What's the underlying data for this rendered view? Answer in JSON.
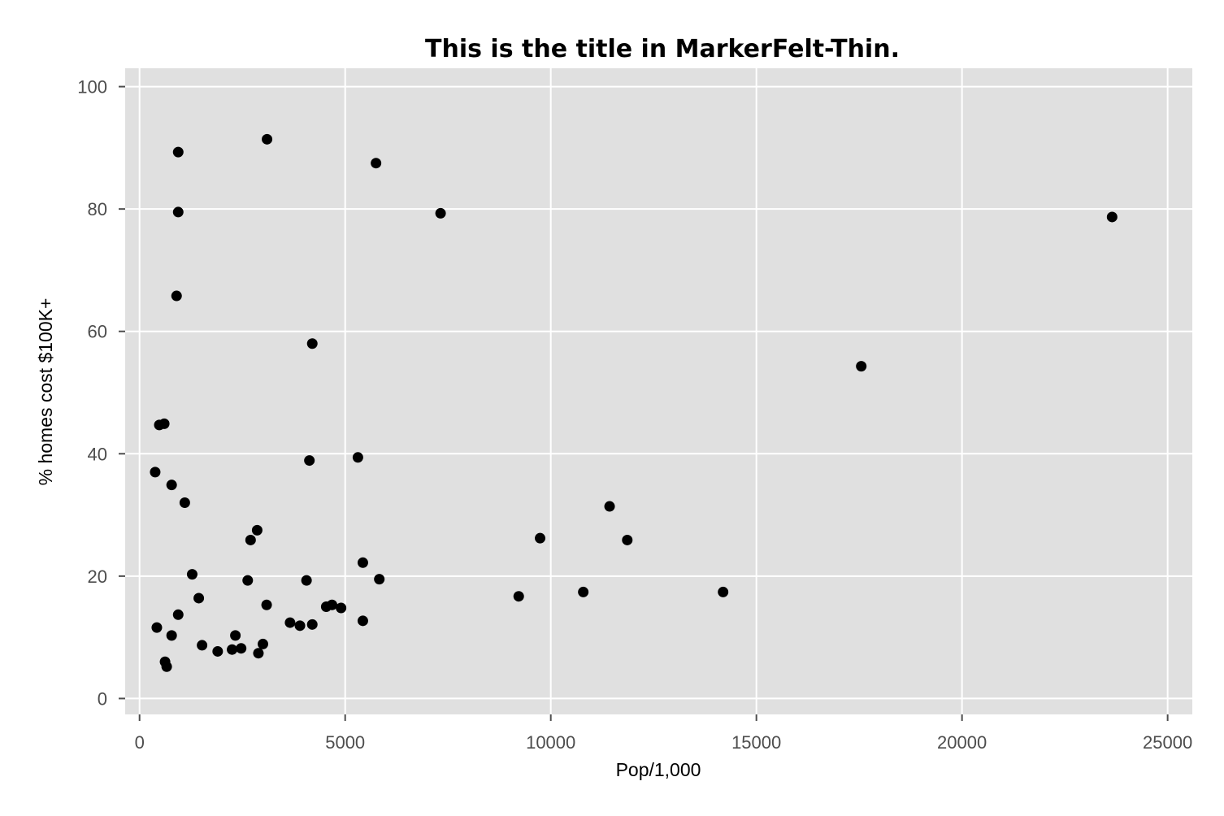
{
  "chart_data": {
    "type": "scatter",
    "title": "This is the title in MarkerFelt-Thin.",
    "xlabel": "Pop/1,000",
    "ylabel": "% homes cost $100K+",
    "xlim": [
      -350,
      25600
    ],
    "ylim": [
      -2.6,
      103
    ],
    "xticks": [
      0,
      5000,
      10000,
      15000,
      20000,
      25000
    ],
    "yticks": [
      0,
      20,
      40,
      60,
      80,
      100
    ],
    "xtick_labels": [
      "0",
      "5000",
      "10000",
      "15000",
      "20000",
      "25000"
    ],
    "ytick_labels": [
      "0",
      "20",
      "40",
      "60",
      "80",
      "100"
    ],
    "grid": true,
    "colors": {
      "panel": "#e0e0e0",
      "grid_major": "#ffffff",
      "point": "#000000",
      "tick": "#4d4d4d"
    },
    "points": [
      {
        "x": 940,
        "y": 89.3
      },
      {
        "x": 3100,
        "y": 91.4
      },
      {
        "x": 5750,
        "y": 87.5
      },
      {
        "x": 940,
        "y": 79.5
      },
      {
        "x": 7320,
        "y": 79.3
      },
      {
        "x": 23650,
        "y": 78.7
      },
      {
        "x": 900,
        "y": 65.8
      },
      {
        "x": 4200,
        "y": 58.0
      },
      {
        "x": 17550,
        "y": 54.3
      },
      {
        "x": 480,
        "y": 44.7
      },
      {
        "x": 600,
        "y": 44.9
      },
      {
        "x": 380,
        "y": 37.0
      },
      {
        "x": 4130,
        "y": 38.9
      },
      {
        "x": 5310,
        "y": 39.4
      },
      {
        "x": 780,
        "y": 34.9
      },
      {
        "x": 1100,
        "y": 32.0
      },
      {
        "x": 11430,
        "y": 31.4
      },
      {
        "x": 2860,
        "y": 27.5
      },
      {
        "x": 2700,
        "y": 25.9
      },
      {
        "x": 9740,
        "y": 26.2
      },
      {
        "x": 11860,
        "y": 25.9
      },
      {
        "x": 5430,
        "y": 22.2
      },
      {
        "x": 1280,
        "y": 20.3
      },
      {
        "x": 2630,
        "y": 19.3
      },
      {
        "x": 4060,
        "y": 19.3
      },
      {
        "x": 5830,
        "y": 19.5
      },
      {
        "x": 10790,
        "y": 17.4
      },
      {
        "x": 14190,
        "y": 17.4
      },
      {
        "x": 9220,
        "y": 16.7
      },
      {
        "x": 1440,
        "y": 16.4
      },
      {
        "x": 3090,
        "y": 15.3
      },
      {
        "x": 4540,
        "y": 15.0
      },
      {
        "x": 4680,
        "y": 15.3
      },
      {
        "x": 4900,
        "y": 14.8
      },
      {
        "x": 940,
        "y": 13.7
      },
      {
        "x": 5430,
        "y": 12.7
      },
      {
        "x": 3660,
        "y": 12.4
      },
      {
        "x": 3900,
        "y": 11.9
      },
      {
        "x": 4200,
        "y": 12.1
      },
      {
        "x": 420,
        "y": 11.6
      },
      {
        "x": 780,
        "y": 10.3
      },
      {
        "x": 2330,
        "y": 10.3
      },
      {
        "x": 1520,
        "y": 8.7
      },
      {
        "x": 3000,
        "y": 8.9
      },
      {
        "x": 1900,
        "y": 7.7
      },
      {
        "x": 2250,
        "y": 8.0
      },
      {
        "x": 2470,
        "y": 8.2
      },
      {
        "x": 2890,
        "y": 7.4
      },
      {
        "x": 620,
        "y": 6.0
      },
      {
        "x": 660,
        "y": 5.2
      }
    ]
  }
}
